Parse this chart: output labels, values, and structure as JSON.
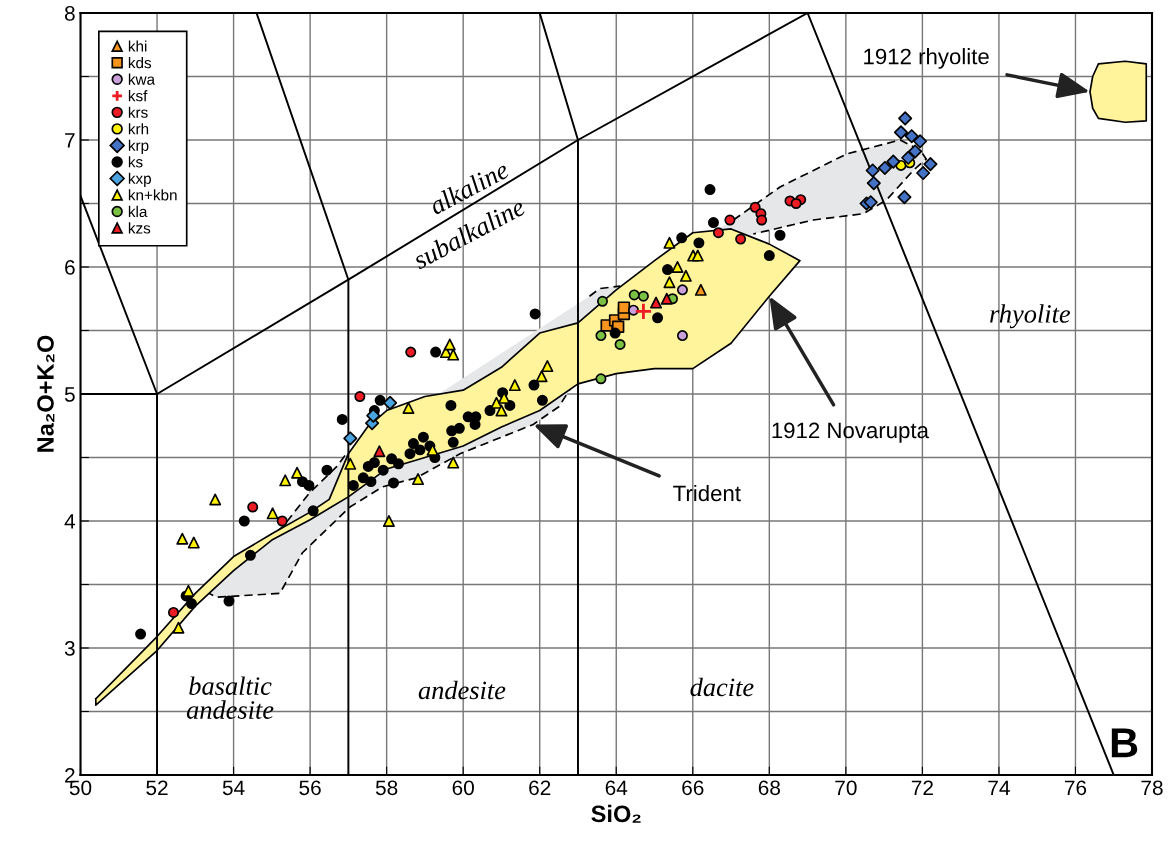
{
  "chart_data": {
    "type": "scatter",
    "xlabel": "SiO₂",
    "ylabel": "Na₂O+K₂O",
    "xlim": [
      50,
      78
    ],
    "xticks": [
      50,
      52,
      54,
      56,
      58,
      60,
      62,
      64,
      66,
      68,
      70,
      72,
      74,
      76,
      78
    ],
    "ylim": [
      2,
      8
    ],
    "yticks": [
      2,
      {
        "value": 2.5,
        "label": null
      },
      3,
      {
        "value": 3.5,
        "label": null
      },
      4,
      {
        "value": 4.5,
        "label": null
      },
      5,
      {
        "value": 5.5,
        "label": null
      },
      6,
      {
        "value": 6.5,
        "label": null
      },
      7,
      {
        "value": 7.5,
        "label": null
      },
      8
    ],
    "grid": true,
    "legend": "top left",
    "series": [
      {
        "type": "area",
        "color": "#e6e7e8",
        "line_style": "dashed",
        "x": [
          53.3,
          54.08,
          55.3,
          55.98,
          56.7,
          56.95,
          60,
          63.3,
          63.57,
          64.1,
          65.5,
          67.06,
          68.28,
          70.02,
          71.42,
          71.94,
          72.1,
          71.76,
          71.07,
          70.46,
          69.15,
          67.58,
          65,
          62.88,
          62.5,
          61.83,
          59.92,
          58.78,
          57.9,
          57.04,
          55.8,
          55.21,
          53.56,
          53.3
        ],
        "values": [
          3.44,
          3.64,
          3.96,
          4.22,
          4.43,
          4.53,
          null,
          5.77,
          5.83,
          5.85,
          null,
          6.37,
          6.63,
          6.89,
          7.0,
          6.92,
          6.85,
          6.76,
          6.53,
          6.42,
          6.37,
          6.26,
          null,
          5.08,
          4.9,
          4.76,
          4.53,
          4.34,
          4.27,
          4.11,
          3.75,
          3.43,
          3.4,
          3.44
        ]
      },
      {
        "type": "area",
        "color": "#fff49c",
        "line_style": "solid",
        "x": [
          50.4,
          52,
          53,
          54,
          55,
          56,
          56.5,
          57,
          57.5,
          58,
          59,
          60,
          61,
          62,
          63,
          64,
          65,
          66,
          67,
          68,
          68.8,
          68,
          67,
          66,
          65,
          64,
          63,
          62,
          61,
          60,
          59,
          58,
          57.5,
          57,
          56.5,
          56,
          55,
          54,
          53,
          52,
          50.4
        ],
        "values": [
          2.6,
          3.09,
          3.43,
          3.72,
          3.9,
          4.07,
          4.17,
          4.53,
          4.74,
          4.87,
          4.98,
          5.03,
          5.21,
          5.48,
          5.56,
          5.82,
          6.05,
          6.27,
          6.3,
          6.18,
          6.05,
          5.77,
          5.4,
          5.2,
          5.2,
          5.16,
          5.08,
          4.87,
          4.74,
          4.59,
          4.5,
          4.41,
          4.3,
          4.19,
          4.1,
          4.01,
          3.85,
          3.61,
          3.33,
          2.98,
          2.55
        ]
      },
      {
        "type": "area",
        "color": "#fff49c",
        "line_style": "solid",
        "x": [
          76.38,
          76.45,
          76.6,
          77.3,
          77.85,
          77.85,
          77.3,
          76.6,
          76.45
        ],
        "values": [
          7.38,
          7.5,
          7.6,
          7.62,
          7.6,
          7.15,
          7.14,
          7.17,
          7.25
        ]
      },
      {
        "type": "line",
        "color": "#000000",
        "x": [
          50,
          52,
          52
        ],
        "values": [
          6.56,
          5,
          2
        ]
      },
      {
        "type": "line",
        "color": "#000000",
        "x": [
          50,
          52
        ],
        "values": [
          5,
          5
        ]
      },
      {
        "type": "line",
        "color": "#000000",
        "x": [
          52,
          57,
          63,
          69,
          77
        ],
        "values": [
          5,
          5.9,
          7,
          8,
          2
        ]
      },
      {
        "type": "line",
        "color": "#000000",
        "x": [
          54.6,
          57,
          57
        ],
        "values": [
          8,
          5.9,
          2
        ]
      },
      {
        "type": "line",
        "color": "#000000",
        "x": [
          62,
          63,
          63
        ],
        "values": [
          8,
          7,
          2
        ]
      },
      {
        "name": "khi",
        "marker": "triangle",
        "color": "#f7941d",
        "x": [
          66.21
        ],
        "values": [
          5.82
        ]
      },
      {
        "name": "kds",
        "marker": "square",
        "color": "#f7941d",
        "x": [
          63.75,
          63.97,
          64.05,
          64.2,
          64.2
        ],
        "values": [
          5.54,
          5.58,
          5.53,
          5.63,
          5.68
        ]
      },
      {
        "name": "kwa",
        "marker": "circle",
        "color": "#c9a0dc",
        "x": [
          64.45,
          65.73,
          65.73
        ],
        "values": [
          5.66,
          5.82,
          5.46
        ]
      },
      {
        "name": "ksf",
        "marker": "cross",
        "color": "#ed1c24",
        "x": [
          64.71
        ],
        "values": [
          5.65
        ]
      },
      {
        "name": "krs",
        "marker": "circle",
        "color": "#ed1c24",
        "x": [
          58.63,
          57.3,
          54.5,
          55.27,
          52.43,
          66.67,
          67.25,
          66.97,
          67.63,
          67.78,
          67.8,
          68.54,
          68.82,
          68.7
        ],
        "values": [
          5.33,
          4.98,
          4.11,
          4.0,
          3.28,
          6.27,
          6.22,
          6.37,
          6.47,
          6.42,
          6.37,
          6.52,
          6.53,
          6.5
        ]
      },
      {
        "name": "krh",
        "marker": "circle",
        "color": "#fff200",
        "x": [
          71.44,
          71.67
        ],
        "values": [
          6.8,
          6.82
        ]
      },
      {
        "name": "krp",
        "marker": "diamond",
        "color": "#4472c4",
        "x": [
          71.55,
          71.44,
          71.72,
          71.94,
          71.81,
          71.63,
          71.24,
          71.02,
          70.7,
          70.73,
          70.54,
          70.65,
          71.53,
          72.02,
          72.21
        ],
        "values": [
          7.17,
          7.06,
          7.03,
          6.99,
          6.91,
          6.86,
          6.83,
          6.78,
          6.76,
          6.66,
          6.5,
          6.51,
          6.55,
          6.74,
          6.81
        ]
      },
      {
        "name": "ks",
        "marker": "circle",
        "color": "#000000",
        "x": [
          51.57,
          52.76,
          52.9,
          53.88,
          54.28,
          54.44,
          55.8,
          55.97,
          56.08,
          56.44,
          56.84,
          57.13,
          57.39,
          57.52,
          57.59,
          57.68,
          57.83,
          57.68,
          57.91,
          58.13,
          58.31,
          58.18,
          59.28,
          58.7,
          58.96,
          59.13,
          58.61,
          59.26,
          58.87,
          59.68,
          60.13,
          60.33,
          60.31,
          59.7,
          59.9,
          59.74,
          60.7,
          61.03,
          61.22,
          61.85,
          62.07,
          61.88,
          63.97,
          65.08,
          65.71,
          66.16,
          65.34,
          66.54,
          66.45,
          68.28,
          68.0
        ],
        "values": [
          3.11,
          3.41,
          3.35,
          3.37,
          4.0,
          3.73,
          4.31,
          4.28,
          4.08,
          4.4,
          4.8,
          4.28,
          4.34,
          4.43,
          4.31,
          4.46,
          4.95,
          4.87,
          4.4,
          4.49,
          4.45,
          4.3,
          5.33,
          4.61,
          4.66,
          4.59,
          4.53,
          4.5,
          4.56,
          4.91,
          4.82,
          4.82,
          4.76,
          4.71,
          4.73,
          4.62,
          4.87,
          5.01,
          4.91,
          5.07,
          4.95,
          5.63,
          5.48,
          5.6,
          6.23,
          6.19,
          5.98,
          6.35,
          6.61,
          6.25,
          6.09
        ]
      },
      {
        "name": "kxp",
        "marker": "diamond",
        "color": "#4aa3df",
        "x": [
          57.05,
          57.62,
          57.65,
          58.09
        ],
        "values": [
          4.65,
          4.77,
          4.83,
          4.93
        ]
      },
      {
        "name": "kn+kbn",
        "marker": "triangle",
        "color": "#fff200",
        "x": [
          52.56,
          52.82,
          52.66,
          52.96,
          53.52,
          55.02,
          55.35,
          55.66,
          57.05,
          58.06,
          58.82,
          58.57,
          59.2,
          59.55,
          59.65,
          59.74,
          59.74,
          61.35,
          62.05,
          62.2,
          60.87,
          61.07,
          61.0,
          65.39,
          65.39,
          65.6,
          65.82,
          66.01,
          66.13
        ],
        "values": [
          3.16,
          3.45,
          3.86,
          3.83,
          4.17,
          4.06,
          4.32,
          4.38,
          4.45,
          4.0,
          4.33,
          4.89,
          4.56,
          5.33,
          5.39,
          5.31,
          4.46,
          5.07,
          5.14,
          5.22,
          4.93,
          4.97,
          4.87,
          6.19,
          5.88,
          6.0,
          5.93,
          6.09,
          6.09
        ]
      },
      {
        "name": "kla",
        "marker": "circle",
        "color": "#7ac143",
        "x": [
          63.64,
          63.6,
          64.1,
          64.47,
          64.71,
          65.47,
          63.6
        ],
        "values": [
          5.73,
          5.46,
          5.39,
          5.78,
          5.77,
          5.75,
          5.12
        ]
      },
      {
        "name": "kzs",
        "marker": "triangle",
        "color": "#ed1c24",
        "x": [
          57.81,
          65.04,
          65.32
        ],
        "values": [
          4.55,
          5.72,
          5.75
        ]
      }
    ],
    "annotations": [
      {
        "text": "1912 rhyolite",
        "x": 76.38,
        "y": 7.38
      },
      {
        "text": "1912 Novarupta",
        "x": 68,
        "y": 5.77
      },
      {
        "text": "Trident",
        "x": 61.83,
        "y": 4.76
      },
      "alkaline",
      "subalkaline",
      "basaltic\nandesite",
      "andesite",
      "dacite",
      "rhyolite",
      "B"
    ]
  }
}
